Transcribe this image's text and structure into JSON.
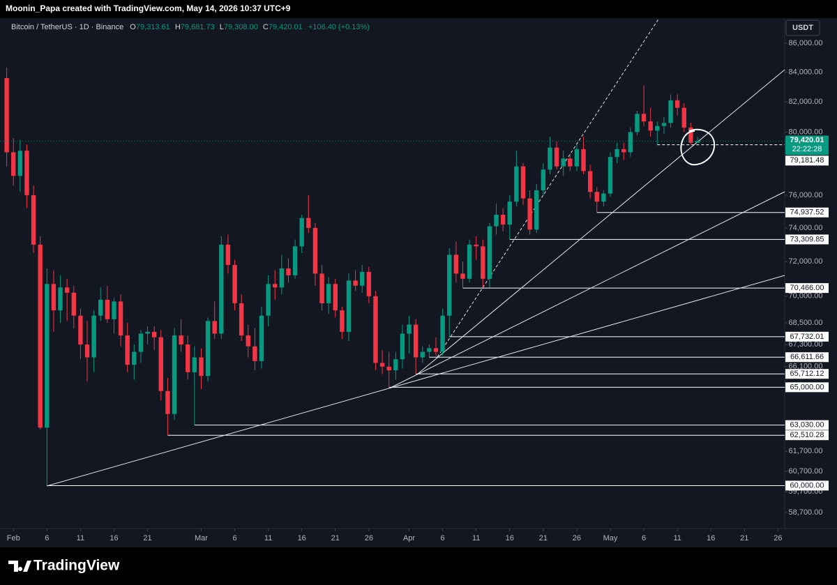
{
  "header": {
    "text": "Moonin_Papa created with TradingView.com, May 14, 2026 10:37 UTC+9"
  },
  "chart_data": {
    "type": "candlestick",
    "symbol": "Bitcoin / TetherUS · 1D · Binance",
    "ohlc_legend": [
      {
        "key": "O",
        "value": "79,313.61"
      },
      {
        "key": "H",
        "value": "79,681.73"
      },
      {
        "key": "L",
        "value": "79,308.00"
      },
      {
        "key": "C",
        "value": "79,420.01"
      }
    ],
    "change": "+106.40 (+0.13%)",
    "currency": "USDT",
    "colors": {
      "up": "#089981",
      "down": "#f23645"
    },
    "log_scale": true,
    "ylim": [
      57940,
      87580
    ],
    "yticks": [
      {
        "value": 86000,
        "label": "86,000.00"
      },
      {
        "value": 84000,
        "label": "84,000.00"
      },
      {
        "value": 82000,
        "label": "82,000.00"
      },
      {
        "value": 80000,
        "label": "80,000.00"
      },
      {
        "value": 76000,
        "label": "76,000.00"
      },
      {
        "value": 74000,
        "label": "74,000.00"
      },
      {
        "value": 72000,
        "label": "72,000.00"
      },
      {
        "value": 70000,
        "label": "70,000.00"
      },
      {
        "value": 68500,
        "label": "68,500.00"
      },
      {
        "value": 67300,
        "label": "67,300.00"
      },
      {
        "value": 66100,
        "label": "66,100.00"
      },
      {
        "value": 61700,
        "label": "61,700.00"
      },
      {
        "value": 60700,
        "label": "60,700.00"
      },
      {
        "value": 59700,
        "label": "59,700.00"
      },
      {
        "value": 58700,
        "label": "58,700.00"
      }
    ],
    "xlim": [
      "2026-01-30",
      "2026-05-27"
    ],
    "xticks": [
      {
        "value": "2026-02-01",
        "label": "Feb"
      },
      {
        "value": "2026-02-06",
        "label": "6"
      },
      {
        "value": "2026-02-11",
        "label": "11"
      },
      {
        "value": "2026-02-16",
        "label": "16"
      },
      {
        "value": "2026-02-21",
        "label": "21"
      },
      {
        "value": "2026-03-01",
        "label": "Mar"
      },
      {
        "value": "2026-03-06",
        "label": "6"
      },
      {
        "value": "2026-03-11",
        "label": "11"
      },
      {
        "value": "2026-03-16",
        "label": "16"
      },
      {
        "value": "2026-03-21",
        "label": "21"
      },
      {
        "value": "2026-03-26",
        "label": "26"
      },
      {
        "value": "2026-04-01",
        "label": "Apr"
      },
      {
        "value": "2026-04-06",
        "label": "6"
      },
      {
        "value": "2026-04-11",
        "label": "11"
      },
      {
        "value": "2026-04-16",
        "label": "16"
      },
      {
        "value": "2026-04-21",
        "label": "21"
      },
      {
        "value": "2026-04-26",
        "label": "26"
      },
      {
        "value": "2026-05-01",
        "label": "May"
      },
      {
        "value": "2026-05-06",
        "label": "6"
      },
      {
        "value": "2026-05-11",
        "label": "11"
      },
      {
        "value": "2026-05-16",
        "label": "16"
      },
      {
        "value": "2026-05-21",
        "label": "21"
      },
      {
        "value": "2026-05-26",
        "label": "26"
      }
    ],
    "candles": [
      {
        "date": "2026-01-31",
        "open": 83600,
        "high": 84300,
        "low": 77800,
        "close": 78700
      },
      {
        "date": "2026-02-01",
        "open": 78700,
        "high": 79600,
        "low": 76600,
        "close": 77200
      },
      {
        "date": "2026-02-02",
        "open": 77200,
        "high": 79500,
        "low": 76200,
        "close": 78800
      },
      {
        "date": "2026-02-03",
        "open": 78800,
        "high": 79200,
        "low": 75200,
        "close": 76000
      },
      {
        "date": "2026-02-04",
        "open": 76000,
        "high": 76600,
        "low": 72500,
        "close": 73000
      },
      {
        "date": "2026-02-05",
        "open": 73000,
        "high": 73500,
        "low": 62800,
        "close": 62900
      },
      {
        "date": "2026-02-06",
        "open": 62900,
        "high": 71600,
        "low": 60000,
        "close": 70700
      },
      {
        "date": "2026-02-07",
        "open": 70700,
        "high": 71500,
        "low": 68000,
        "close": 69200
      },
      {
        "date": "2026-02-08",
        "open": 69200,
        "high": 71200,
        "low": 68500,
        "close": 70500
      },
      {
        "date": "2026-02-09",
        "open": 70500,
        "high": 71000,
        "low": 68600,
        "close": 70200
      },
      {
        "date": "2026-02-10",
        "open": 70200,
        "high": 70600,
        "low": 68200,
        "close": 68900
      },
      {
        "date": "2026-02-11",
        "open": 68900,
        "high": 69300,
        "low": 66500,
        "close": 67300
      },
      {
        "date": "2026-02-12",
        "open": 67300,
        "high": 68600,
        "low": 65300,
        "close": 66600
      },
      {
        "date": "2026-02-13",
        "open": 66600,
        "high": 69200,
        "low": 65800,
        "close": 68900
      },
      {
        "date": "2026-02-14",
        "open": 68900,
        "high": 70500,
        "low": 68600,
        "close": 69800
      },
      {
        "date": "2026-02-15",
        "open": 69800,
        "high": 70600,
        "low": 68500,
        "close": 68700
      },
      {
        "date": "2026-02-16",
        "open": 68700,
        "high": 69900,
        "low": 67900,
        "close": 69700
      },
      {
        "date": "2026-02-17",
        "open": 69700,
        "high": 70100,
        "low": 67200,
        "close": 67800
      },
      {
        "date": "2026-02-18",
        "open": 67800,
        "high": 68500,
        "low": 65800,
        "close": 66200
      },
      {
        "date": "2026-02-19",
        "open": 66200,
        "high": 67300,
        "low": 65400,
        "close": 66900
      },
      {
        "date": "2026-02-20",
        "open": 66900,
        "high": 68100,
        "low": 66300,
        "close": 67900
      },
      {
        "date": "2026-02-21",
        "open": 67900,
        "high": 68300,
        "low": 67300,
        "close": 68000
      },
      {
        "date": "2026-02-22",
        "open": 68000,
        "high": 68300,
        "low": 67000,
        "close": 67700
      },
      {
        "date": "2026-02-23",
        "open": 67700,
        "high": 68100,
        "low": 64300,
        "close": 64800
      },
      {
        "date": "2026-02-24",
        "open": 64800,
        "high": 65500,
        "low": 62510.28,
        "close": 63600
      },
      {
        "date": "2026-02-25",
        "open": 63600,
        "high": 68200,
        "low": 63300,
        "close": 67800
      },
      {
        "date": "2026-02-26",
        "open": 67800,
        "high": 68700,
        "low": 66900,
        "close": 67300
      },
      {
        "date": "2026-02-27",
        "open": 67300,
        "high": 67800,
        "low": 65400,
        "close": 65800
      },
      {
        "date": "2026-02-28",
        "open": 65800,
        "high": 67200,
        "low": 63030,
        "close": 66600
      },
      {
        "date": "2026-03-01",
        "open": 66600,
        "high": 67100,
        "low": 64900,
        "close": 65600
      },
      {
        "date": "2026-03-02",
        "open": 65600,
        "high": 68800,
        "low": 65300,
        "close": 68600
      },
      {
        "date": "2026-03-03",
        "open": 68600,
        "high": 69700,
        "low": 67600,
        "close": 67900
      },
      {
        "date": "2026-03-04",
        "open": 67900,
        "high": 73500,
        "low": 67600,
        "close": 73000
      },
      {
        "date": "2026-03-05",
        "open": 73000,
        "high": 73600,
        "low": 71300,
        "close": 71800
      },
      {
        "date": "2026-03-06",
        "open": 71800,
        "high": 72100,
        "low": 69200,
        "close": 69600
      },
      {
        "date": "2026-03-07",
        "open": 69600,
        "high": 70100,
        "low": 67500,
        "close": 67800
      },
      {
        "date": "2026-03-08",
        "open": 67800,
        "high": 68400,
        "low": 66600,
        "close": 67200
      },
      {
        "date": "2026-03-09",
        "open": 67200,
        "high": 68200,
        "low": 65900,
        "close": 66400
      },
      {
        "date": "2026-03-10",
        "open": 66400,
        "high": 69400,
        "low": 66000,
        "close": 68900
      },
      {
        "date": "2026-03-11",
        "open": 68900,
        "high": 71200,
        "low": 68300,
        "close": 70700
      },
      {
        "date": "2026-03-12",
        "open": 70700,
        "high": 71500,
        "low": 69800,
        "close": 70500
      },
      {
        "date": "2026-03-13",
        "open": 70500,
        "high": 72400,
        "low": 70100,
        "close": 71600
      },
      {
        "date": "2026-03-14",
        "open": 71600,
        "high": 72200,
        "low": 70800,
        "close": 71200
      },
      {
        "date": "2026-03-15",
        "open": 71200,
        "high": 73300,
        "low": 71000,
        "close": 72900
      },
      {
        "date": "2026-03-16",
        "open": 72900,
        "high": 74800,
        "low": 72500,
        "close": 74600
      },
      {
        "date": "2026-03-17",
        "open": 74600,
        "high": 76000,
        "low": 73700,
        "close": 74000
      },
      {
        "date": "2026-03-18",
        "open": 74000,
        "high": 74300,
        "low": 70600,
        "close": 71300
      },
      {
        "date": "2026-03-19",
        "open": 71300,
        "high": 71800,
        "low": 69200,
        "close": 69600
      },
      {
        "date": "2026-03-20",
        "open": 69600,
        "high": 71100,
        "low": 69000,
        "close": 70700
      },
      {
        "date": "2026-03-21",
        "open": 70700,
        "high": 71000,
        "low": 68800,
        "close": 69200
      },
      {
        "date": "2026-03-22",
        "open": 69200,
        "high": 69400,
        "low": 67600,
        "close": 68000
      },
      {
        "date": "2026-03-23",
        "open": 68000,
        "high": 71300,
        "low": 67500,
        "close": 70900
      },
      {
        "date": "2026-03-24",
        "open": 70900,
        "high": 71500,
        "low": 70300,
        "close": 70600
      },
      {
        "date": "2026-03-25",
        "open": 70600,
        "high": 71800,
        "low": 70200,
        "close": 71400
      },
      {
        "date": "2026-03-26",
        "open": 71400,
        "high": 71700,
        "low": 69600,
        "close": 70000
      },
      {
        "date": "2026-03-27",
        "open": 70000,
        "high": 70300,
        "low": 65900,
        "close": 66300
      },
      {
        "date": "2026-03-28",
        "open": 66300,
        "high": 67000,
        "low": 65700,
        "close": 66100
      },
      {
        "date": "2026-03-29",
        "open": 66100,
        "high": 66900,
        "low": 65000,
        "close": 65900
      },
      {
        "date": "2026-03-30",
        "open": 65900,
        "high": 66900,
        "low": 65400,
        "close": 66500
      },
      {
        "date": "2026-03-31",
        "open": 66500,
        "high": 68400,
        "low": 66000,
        "close": 67900
      },
      {
        "date": "2026-04-01",
        "open": 67900,
        "high": 68900,
        "low": 66800,
        "close": 68400
      },
      {
        "date": "2026-04-02",
        "open": 68400,
        "high": 68700,
        "low": 65712.12,
        "close": 66600
      },
      {
        "date": "2026-04-03",
        "open": 66600,
        "high": 67200,
        "low": 66300,
        "close": 66900
      },
      {
        "date": "2026-04-04",
        "open": 66900,
        "high": 67300,
        "low": 66611.66,
        "close": 67100
      },
      {
        "date": "2026-04-05",
        "open": 67100,
        "high": 67700,
        "low": 66700,
        "close": 66900
      },
      {
        "date": "2026-04-06",
        "open": 66900,
        "high": 69300,
        "low": 66700,
        "close": 68900
      },
      {
        "date": "2026-04-07",
        "open": 68900,
        "high": 72800,
        "low": 67732.01,
        "close": 72400
      },
      {
        "date": "2026-04-08",
        "open": 72400,
        "high": 73200,
        "low": 70800,
        "close": 71300
      },
      {
        "date": "2026-04-09",
        "open": 71300,
        "high": 72000,
        "low": 70466,
        "close": 71000
      },
      {
        "date": "2026-04-10",
        "open": 71000,
        "high": 73300,
        "low": 70800,
        "close": 73000
      },
      {
        "date": "2026-04-11",
        "open": 73000,
        "high": 73500,
        "low": 72100,
        "close": 72900
      },
      {
        "date": "2026-04-12",
        "open": 72900,
        "high": 73300,
        "low": 70500,
        "close": 71000
      },
      {
        "date": "2026-04-13",
        "open": 71000,
        "high": 74300,
        "low": 70500,
        "close": 74100
      },
      {
        "date": "2026-04-14",
        "open": 74100,
        "high": 75500,
        "low": 73600,
        "close": 74800
      },
      {
        "date": "2026-04-15",
        "open": 74800,
        "high": 75200,
        "low": 73800,
        "close": 74200
      },
      {
        "date": "2026-04-16",
        "open": 74200,
        "high": 76000,
        "low": 73309.85,
        "close": 75600
      },
      {
        "date": "2026-04-17",
        "open": 75600,
        "high": 78800,
        "low": 75300,
        "close": 77800
      },
      {
        "date": "2026-04-18",
        "open": 77800,
        "high": 78000,
        "low": 75400,
        "close": 75800
      },
      {
        "date": "2026-04-19",
        "open": 75800,
        "high": 76300,
        "low": 73600,
        "close": 73900
      },
      {
        "date": "2026-04-20",
        "open": 73900,
        "high": 76700,
        "low": 73700,
        "close": 76300
      },
      {
        "date": "2026-04-21",
        "open": 76300,
        "high": 78000,
        "low": 76000,
        "close": 77600
      },
      {
        "date": "2026-04-22",
        "open": 77600,
        "high": 79700,
        "low": 77300,
        "close": 79000
      },
      {
        "date": "2026-04-23",
        "open": 79000,
        "high": 79400,
        "low": 77600,
        "close": 77800
      },
      {
        "date": "2026-04-24",
        "open": 77800,
        "high": 78800,
        "low": 77200,
        "close": 78300
      },
      {
        "date": "2026-04-25",
        "open": 78300,
        "high": 78600,
        "low": 77500,
        "close": 77800
      },
      {
        "date": "2026-04-26",
        "open": 77800,
        "high": 79200,
        "low": 77500,
        "close": 78900
      },
      {
        "date": "2026-04-27",
        "open": 78900,
        "high": 79700,
        "low": 77300,
        "close": 77500
      },
      {
        "date": "2026-04-28",
        "open": 77500,
        "high": 77900,
        "low": 75800,
        "close": 76200
      },
      {
        "date": "2026-04-29",
        "open": 76200,
        "high": 76500,
        "low": 74937.52,
        "close": 75600
      },
      {
        "date": "2026-04-30",
        "open": 75600,
        "high": 76300,
        "low": 75300,
        "close": 76100
      },
      {
        "date": "2026-05-01",
        "open": 76100,
        "high": 78700,
        "low": 75900,
        "close": 78400
      },
      {
        "date": "2026-05-02",
        "open": 78400,
        "high": 79300,
        "low": 78000,
        "close": 78900
      },
      {
        "date": "2026-05-03",
        "open": 78900,
        "high": 79300,
        "low": 78200,
        "close": 78700
      },
      {
        "date": "2026-05-04",
        "open": 78700,
        "high": 80300,
        "low": 78400,
        "close": 80000
      },
      {
        "date": "2026-05-05",
        "open": 80000,
        "high": 81400,
        "low": 79800,
        "close": 81200
      },
      {
        "date": "2026-05-06",
        "open": 81200,
        "high": 83100,
        "low": 80400,
        "close": 80700
      },
      {
        "date": "2026-05-07",
        "open": 80700,
        "high": 81600,
        "low": 79700,
        "close": 80100
      },
      {
        "date": "2026-05-08",
        "open": 80100,
        "high": 80700,
        "low": 79181.48,
        "close": 80400
      },
      {
        "date": "2026-05-09",
        "open": 80400,
        "high": 81000,
        "low": 79900,
        "close": 80600
      },
      {
        "date": "2026-05-10",
        "open": 80600,
        "high": 82500,
        "low": 80300,
        "close": 82100
      },
      {
        "date": "2026-05-11",
        "open": 82100,
        "high": 82500,
        "low": 81100,
        "close": 81600
      },
      {
        "date": "2026-05-12",
        "open": 81600,
        "high": 81900,
        "low": 80000,
        "close": 80300
      },
      {
        "date": "2026-05-13",
        "open": 80300,
        "high": 80600,
        "low": 79200,
        "close": 79313.61
      },
      {
        "date": "2026-05-14",
        "open": 79313.61,
        "high": 79681.73,
        "low": 79308,
        "close": 79420.01
      }
    ],
    "last_price": {
      "label": "79,420.01",
      "countdown": "22:22:28"
    },
    "levels": [
      {
        "value": 79181.48,
        "label": "79,181.48",
        "from": "2026-05-08",
        "style": "dashed"
      },
      {
        "value": 74937.52,
        "label": "74,937.52",
        "from": "2026-04-29",
        "style": "solid"
      },
      {
        "value": 73309.85,
        "label": "73,309.85",
        "from": "2026-04-16",
        "style": "solid"
      },
      {
        "value": 70466,
        "label": "70,466.00",
        "from": "2026-04-09",
        "style": "solid"
      },
      {
        "value": 67732.01,
        "label": "67,732.01",
        "from": "2026-04-07",
        "style": "solid"
      },
      {
        "value": 66611.66,
        "label": "66,611.66",
        "from": "2026-04-04",
        "style": "solid"
      },
      {
        "value": 65712.12,
        "label": "65,712.12",
        "from": "2026-04-02",
        "style": "solid"
      },
      {
        "value": 65000,
        "label": "65,000.00",
        "from": "2026-03-29",
        "style": "solid"
      },
      {
        "value": 63030,
        "label": "63,030.00",
        "from": "2026-02-28",
        "style": "solid"
      },
      {
        "value": 62510.28,
        "label": "62,510.28",
        "from": "2026-02-24",
        "style": "solid"
      },
      {
        "value": 60000,
        "label": "60,000.00",
        "from": "2026-02-06",
        "style": "solid"
      }
    ]
  },
  "footer": {
    "brand": "TradingView"
  }
}
